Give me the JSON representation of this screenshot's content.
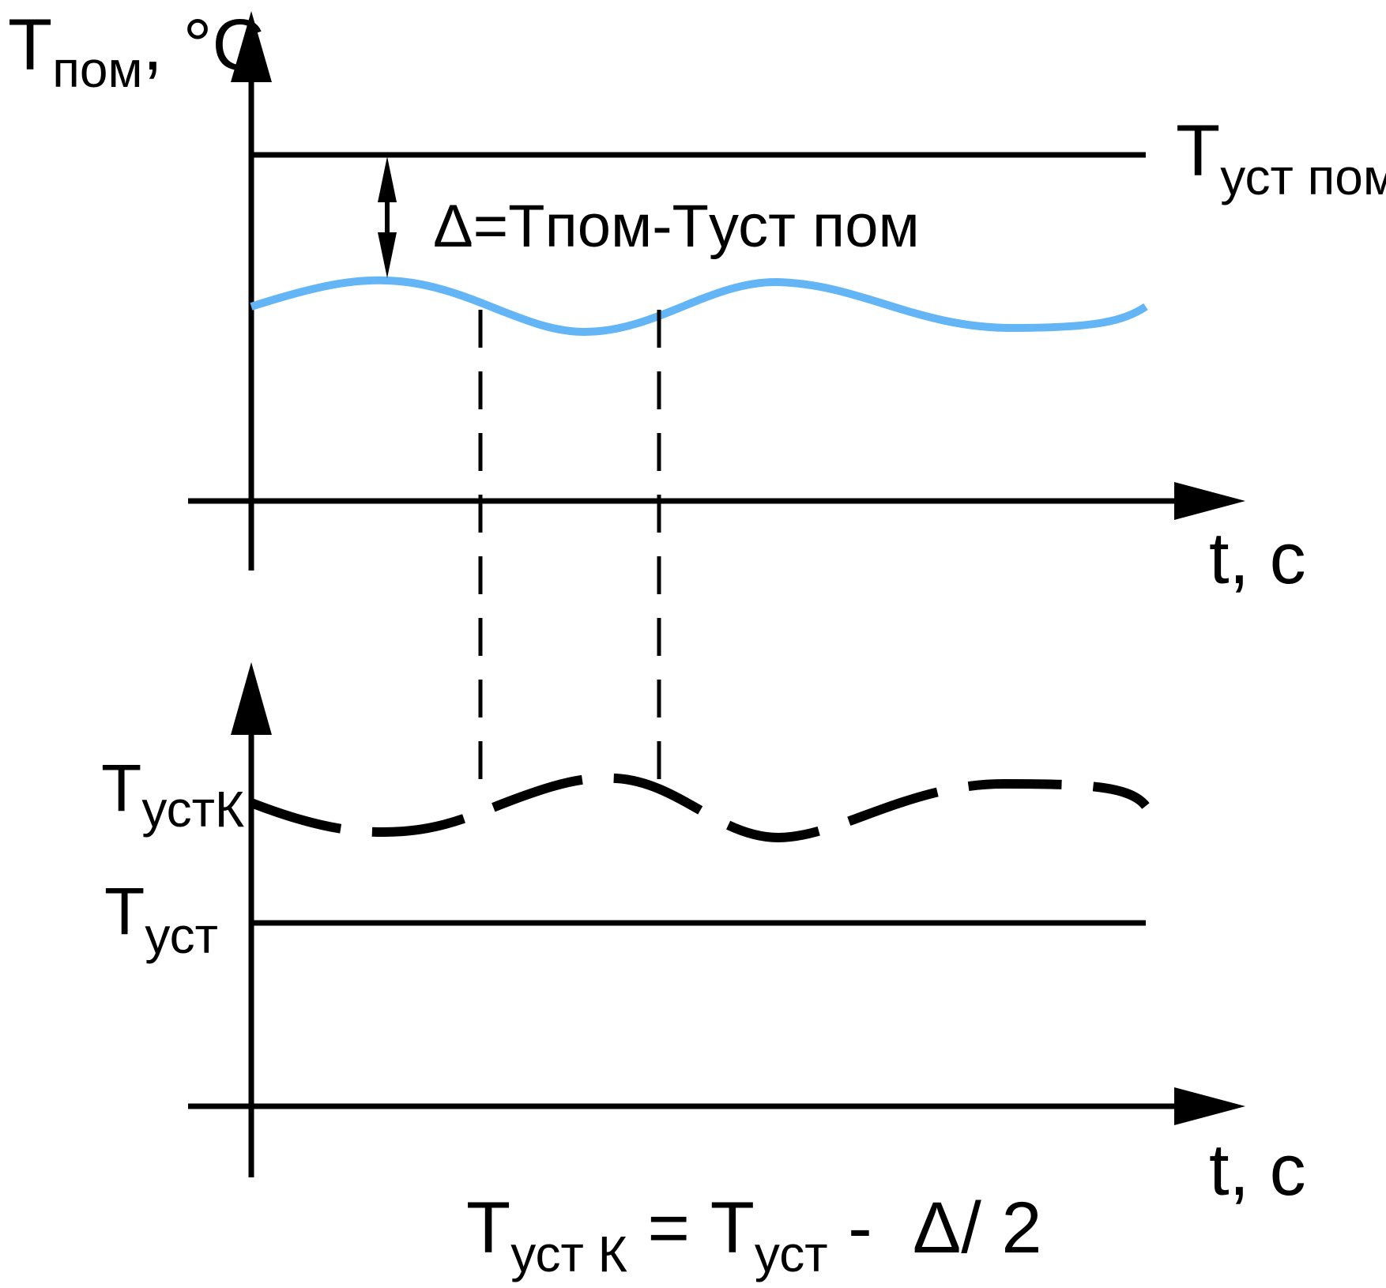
{
  "colors": {
    "ink": "#000000",
    "room_curve": "#64b5f6",
    "background": "#ffffff"
  },
  "top_graph": {
    "y_axis_label": {
      "main": "T",
      "sub": "пом",
      "unit": ", °C"
    },
    "x_axis_label": "t, c",
    "setpoint_label": {
      "main": "T",
      "sub": "уст пом"
    },
    "delta_label": "Δ=Tпом-Tуст пом"
  },
  "bottom_graph": {
    "corrected_setpoint_label": {
      "main": "T",
      "sub": "устК"
    },
    "setpoint_label": {
      "main": "T",
      "sub": "уст"
    },
    "x_axis_label": "t, c"
  },
  "formula": {
    "lhs_main": "T",
    "lhs_sub": "уст К",
    "equals": " = ",
    "rhs_main": "T",
    "rhs_sub": "уст",
    "rhs_tail": " -  Δ/ 2"
  }
}
